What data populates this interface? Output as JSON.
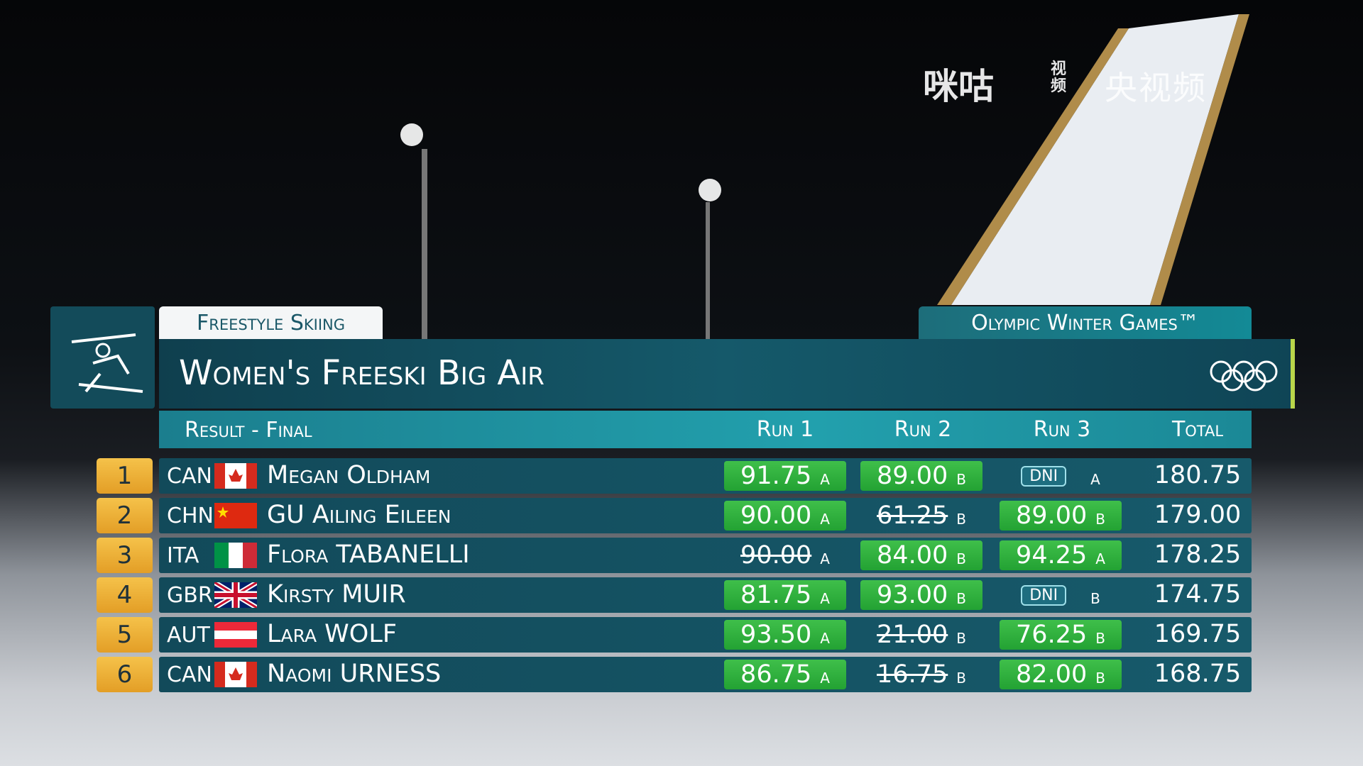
{
  "watermarks": {
    "migu": "咪咕",
    "migu_sub": "视频",
    "cctv": "央视频"
  },
  "header": {
    "sport": "Freestyle Skiing",
    "games": "Olympic Winter Games™",
    "title": "Women's Freeski Big Air",
    "subtitle": "Result - Final"
  },
  "table": {
    "columns": [
      "Run 1",
      "Run 2",
      "Run 3",
      "Total"
    ],
    "rows": [
      {
        "rank": "1",
        "country": "CAN",
        "name": "Megan Oldham",
        "runs": [
          {
            "score": "91.75",
            "jump": "A",
            "style": "counted"
          },
          {
            "score": "89.00",
            "jump": "B",
            "style": "counted"
          },
          {
            "score": "DNI",
            "jump": "A",
            "style": "dni"
          }
        ],
        "total": "180.75"
      },
      {
        "rank": "2",
        "country": "CHN",
        "name": "GU Ailing Eileen",
        "runs": [
          {
            "score": "90.00",
            "jump": "A",
            "style": "counted"
          },
          {
            "score": "61.25",
            "jump": "B",
            "style": "dropped"
          },
          {
            "score": "89.00",
            "jump": "B",
            "style": "counted"
          }
        ],
        "total": "179.00"
      },
      {
        "rank": "3",
        "country": "ITA",
        "name": "Flora TABANELLI",
        "runs": [
          {
            "score": "90.00",
            "jump": "A",
            "style": "dropped"
          },
          {
            "score": "84.00",
            "jump": "B",
            "style": "counted"
          },
          {
            "score": "94.25",
            "jump": "A",
            "style": "counted"
          }
        ],
        "total": "178.25"
      },
      {
        "rank": "4",
        "country": "GBR",
        "name": "Kirsty MUIR",
        "runs": [
          {
            "score": "81.75",
            "jump": "A",
            "style": "counted"
          },
          {
            "score": "93.00",
            "jump": "B",
            "style": "counted"
          },
          {
            "score": "DNI",
            "jump": "B",
            "style": "dni"
          }
        ],
        "total": "174.75"
      },
      {
        "rank": "5",
        "country": "AUT",
        "name": "Lara WOLF",
        "runs": [
          {
            "score": "93.50",
            "jump": "A",
            "style": "counted"
          },
          {
            "score": "21.00",
            "jump": "B",
            "style": "dropped"
          },
          {
            "score": "76.25",
            "jump": "B",
            "style": "counted"
          }
        ],
        "total": "169.75"
      },
      {
        "rank": "6",
        "country": "CAN",
        "name": "Naomi URNESS",
        "runs": [
          {
            "score": "86.75",
            "jump": "A",
            "style": "counted"
          },
          {
            "score": "16.75",
            "jump": "B",
            "style": "dropped"
          },
          {
            "score": "82.00",
            "jump": "B",
            "style": "counted"
          }
        ],
        "total": "168.75"
      }
    ]
  }
}
